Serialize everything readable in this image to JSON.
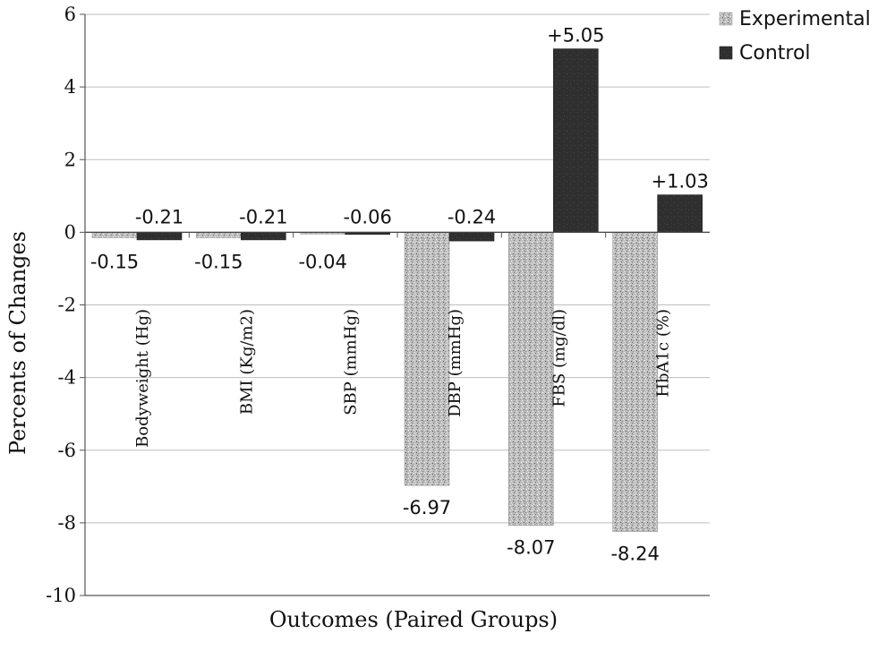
{
  "chart_data": {
    "type": "bar",
    "xlabel": "Outcomes (Paired Groups)",
    "ylabel": "Percents of Changes",
    "ylim": [
      -10,
      6
    ],
    "yticks": [
      6,
      4,
      2,
      0,
      -2,
      -4,
      -6,
      -8,
      -10
    ],
    "grid": true,
    "legend_position": "top-right",
    "categories": [
      "Bodyweight (Hg)",
      "BMI (Kg/m2)",
      "SBP (mmHg)",
      "DBP (mmHg)",
      "FBS (mg/dl)",
      "HbA1c (%)"
    ],
    "series": [
      {
        "name": "Experimental",
        "values": [
          -0.15,
          -0.15,
          -0.04,
          -6.97,
          -8.07,
          -8.24
        ],
        "labels": [
          "-0.15",
          "-0.15",
          "-0.04",
          "-6.97",
          "-8.07",
          "-8.24"
        ],
        "color": "#b8b8b8"
      },
      {
        "name": "Control",
        "values": [
          -0.21,
          -0.21,
          -0.06,
          -0.24,
          5.05,
          1.03
        ],
        "labels": [
          "-0.21",
          "-0.21",
          "-0.06",
          "-0.24",
          "+5.05",
          "+1.03"
        ],
        "color": "#2e2e2e"
      }
    ]
  }
}
